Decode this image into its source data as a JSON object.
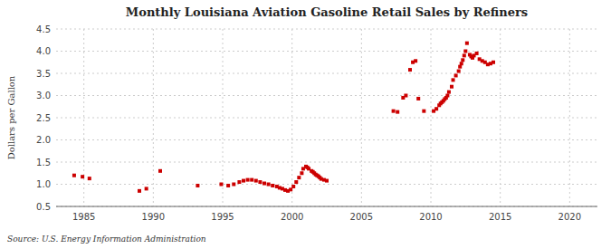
{
  "chart_data": {
    "type": "scatter",
    "title": "Monthly Louisiana Aviation Gasoline Retail Sales by Refiners",
    "ylabel": "Dollars per Gallon",
    "source": "Source: U.S. Energy Information Administration",
    "color": "#cc0000",
    "marker": "square",
    "grid": true,
    "xlim": [
      1983,
      2022
    ],
    "ylim": [
      0.5,
      4.5
    ],
    "xticks": [
      1985,
      1990,
      1995,
      2000,
      2005,
      2010,
      2015,
      2020
    ],
    "yticks": [
      0.5,
      {
        "value": 1.0,
        "label": "1.0"
      },
      1.5,
      {
        "value": 2.0,
        "label": "2.0"
      },
      2.5,
      {
        "value": 3.0,
        "label": "3.0"
      },
      3.5,
      {
        "value": 4.0,
        "label": "4.0"
      },
      4.5
    ],
    "x": [
      1984.3,
      1984.9,
      1985.4,
      1989.0,
      1989.5,
      1990.5,
      1993.2,
      1994.9,
      1995.4,
      1995.8,
      1996.2,
      1996.5,
      1996.8,
      1997.1,
      1997.4,
      1997.7,
      1998.0,
      1998.3,
      1998.6,
      1998.9,
      1999.1,
      1999.3,
      1999.5,
      1999.7,
      1999.9,
      2000.1,
      2000.3,
      2000.5,
      2000.7,
      2000.8,
      2001.0,
      2001.1,
      2001.2,
      2001.4,
      2001.5,
      2001.6,
      2001.7,
      2001.8,
      2001.9,
      2002.0,
      2002.1,
      2002.3,
      2002.5,
      2007.3,
      2007.6,
      2008.0,
      2008.2,
      2008.5,
      2008.7,
      2008.9,
      2009.1,
      2009.5,
      2010.2,
      2010.4,
      2010.6,
      2010.7,
      2010.8,
      2010.9,
      2011.0,
      2011.1,
      2011.2,
      2011.3,
      2011.5,
      2011.6,
      2011.8,
      2012.0,
      2012.1,
      2012.2,
      2012.3,
      2012.4,
      2012.5,
      2012.6,
      2012.8,
      2012.9,
      2013.0,
      2013.1,
      2013.3,
      2013.5,
      2013.7,
      2013.9,
      2014.1,
      2014.3,
      2014.5
    ],
    "values": [
      1.2,
      1.17,
      1.13,
      0.85,
      0.9,
      1.3,
      0.97,
      1.0,
      0.97,
      1.0,
      1.05,
      1.08,
      1.1,
      1.1,
      1.08,
      1.05,
      1.02,
      1.0,
      0.97,
      0.95,
      0.92,
      0.9,
      0.87,
      0.85,
      0.88,
      0.95,
      1.05,
      1.15,
      1.25,
      1.35,
      1.4,
      1.38,
      1.35,
      1.3,
      1.28,
      1.25,
      1.22,
      1.2,
      1.18,
      1.15,
      1.12,
      1.1,
      1.08,
      2.65,
      2.63,
      2.95,
      3.0,
      3.58,
      3.75,
      3.78,
      2.93,
      2.65,
      2.65,
      2.7,
      2.78,
      2.82,
      2.85,
      2.88,
      2.92,
      2.95,
      3.0,
      3.08,
      3.2,
      3.35,
      3.45,
      3.55,
      3.65,
      3.72,
      3.8,
      3.9,
      4.0,
      4.18,
      3.92,
      3.88,
      3.85,
      3.9,
      3.95,
      3.82,
      3.78,
      3.75,
      3.7,
      3.72,
      3.75
    ]
  }
}
